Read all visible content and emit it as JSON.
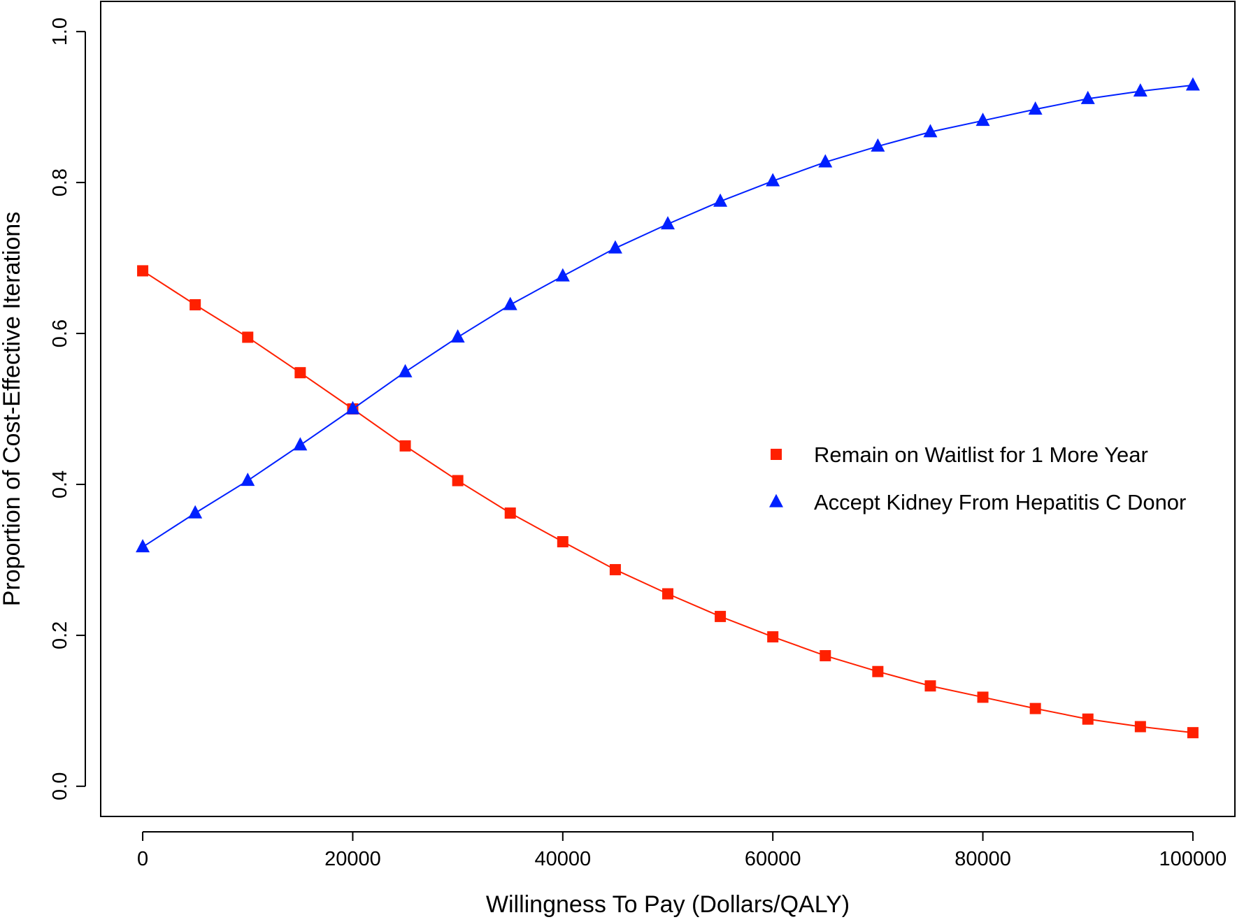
{
  "chart_data": {
    "type": "line",
    "title": "",
    "xlabel": "Willingness To Pay (Dollars/QALY)",
    "ylabel": "Proportion of Cost-Effective Iterations",
    "xlim": [
      -4000,
      104000
    ],
    "ylim": [
      -0.04,
      1.04
    ],
    "xticks": [
      0,
      20000,
      40000,
      60000,
      80000,
      100000
    ],
    "yticks": [
      0.0,
      0.2,
      0.4,
      0.6,
      0.8,
      1.0
    ],
    "xtick_labels": [
      "0",
      "20000",
      "40000",
      "60000",
      "80000",
      "100000"
    ],
    "ytick_labels": [
      "0.0",
      "0.2",
      "0.4",
      "0.6",
      "0.8",
      "1.0"
    ],
    "grid": false,
    "legend_position": "right",
    "x": [
      0,
      5000,
      10000,
      15000,
      20000,
      25000,
      30000,
      35000,
      40000,
      45000,
      50000,
      55000,
      60000,
      65000,
      70000,
      75000,
      80000,
      85000,
      90000,
      95000,
      100000
    ],
    "series": [
      {
        "name": "Remain on Waitlist for 1 More Year",
        "color": "#ff2000",
        "marker": "square",
        "values": [
          0.683,
          0.638,
          0.595,
          0.548,
          0.5,
          0.451,
          0.405,
          0.362,
          0.324,
          0.287,
          0.255,
          0.225,
          0.198,
          0.173,
          0.152,
          0.133,
          0.118,
          0.103,
          0.089,
          0.079,
          0.071
        ]
      },
      {
        "name": "Accept Kidney From Hepatitis C Donor",
        "color": "#0020ff",
        "marker": "triangle",
        "values": [
          0.317,
          0.362,
          0.405,
          0.452,
          0.5,
          0.549,
          0.595,
          0.638,
          0.676,
          0.713,
          0.745,
          0.775,
          0.802,
          0.827,
          0.848,
          0.867,
          0.882,
          0.897,
          0.911,
          0.921,
          0.929
        ]
      }
    ]
  }
}
